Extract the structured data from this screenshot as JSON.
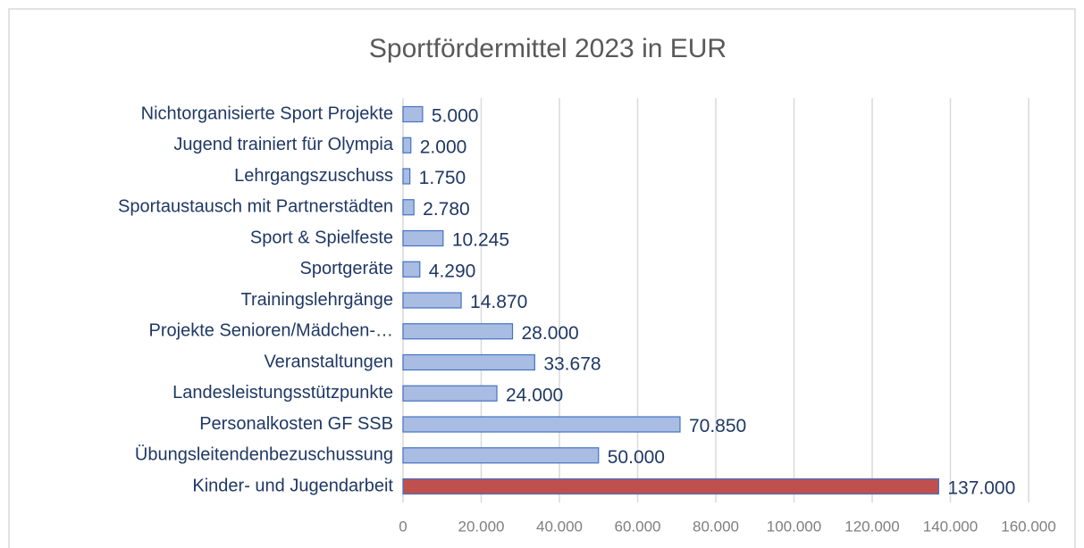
{
  "chart_data": {
    "type": "hbar",
    "title": "Sportfördermittel 2023 in EUR",
    "categories": [
      "Nichtorganisierte Sport Projekte",
      "Jugend trainiert für Olympia",
      "Lehrgangszuschuss",
      "Sportaustausch mit Partnerstädten",
      "Sport & Spielfeste",
      "Sportgeräte",
      "Trainingslehrgänge",
      "Projekte Senioren/Mädchen-…",
      "Veranstaltungen",
      "Landesleistungsstützpunkte",
      "Personalkosten GF SSB",
      "Übungsleitendenbezuschussung",
      "Kinder- und Jugendarbeit"
    ],
    "values": [
      5000,
      2000,
      1750,
      2780,
      10245,
      4290,
      14870,
      28000,
      33678,
      24000,
      70850,
      50000,
      137000
    ],
    "value_labels": [
      "5.000",
      "2.000",
      "1.750",
      "2.780",
      "10.245",
      "4.290",
      "14.870",
      "28.000",
      "33.678",
      "24.000",
      "70.850",
      "50.000",
      "137.000"
    ],
    "colors": [
      "#a9bde3",
      "#a9bde3",
      "#a9bde3",
      "#a9bde3",
      "#a9bde3",
      "#a9bde3",
      "#a9bde3",
      "#a9bde3",
      "#a9bde3",
      "#a9bde3",
      "#a9bde3",
      "#a9bde3",
      "#c0504d"
    ],
    "xlim": [
      0,
      160000
    ],
    "xticks": [
      0,
      {
        "value": 20000,
        "label": "20.000"
      },
      {
        "value": 40000,
        "label": "40.000"
      },
      {
        "value": 60000,
        "label": "60.000"
      },
      {
        "value": 80000,
        "label": "80.000"
      },
      {
        "value": 100000,
        "label": "100.000"
      },
      {
        "value": 120000,
        "label": "120.000"
      },
      {
        "value": 140000,
        "label": "140.000"
      },
      {
        "value": 160000,
        "label": "160.000"
      }
    ],
    "grid": true
  }
}
